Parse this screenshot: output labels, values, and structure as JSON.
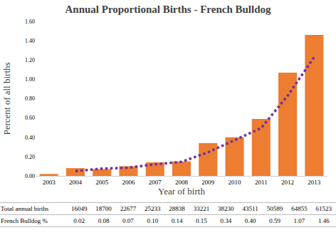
{
  "chart_data": {
    "type": "bar",
    "title": "Annual Proportional Births - French Bulldog",
    "x_label": "Year of birth",
    "y_label": "Percent of all births",
    "categories": [
      "2003",
      "2004",
      "2005",
      "2006",
      "2007",
      "2008",
      "2009",
      "2010",
      "2011",
      "2012",
      "2013"
    ],
    "series": [
      {
        "type": "bar",
        "color": "#ed7d31",
        "values": [
          0.02,
          0.08,
          0.07,
          0.1,
          0.14,
          0.15,
          0.34,
          0.4,
          0.59,
          1.07,
          1.46
        ]
      },
      {
        "type": "line",
        "color": "#7030a0",
        "line_style": "dotted",
        "values": [
          null,
          0.05,
          0.075,
          0.085,
          0.12,
          0.145,
          0.245,
          0.37,
          0.495,
          0.83,
          1.23
        ]
      }
    ],
    "ylim": [
      0,
      1.6
    ],
    "yticks": [
      {
        "value": 0,
        "label": "0.00"
      },
      {
        "value": 0.2,
        "label": "0.20"
      },
      {
        "value": 0.4,
        "label": "0.40"
      },
      {
        "value": 0.6,
        "label": "0.60"
      },
      {
        "value": 0.8,
        "label": "0.80"
      },
      {
        "value": 1.0,
        "label": "1.00"
      },
      {
        "value": 1.2,
        "label": "1.20"
      },
      {
        "value": 1.4,
        "label": "1.40"
      },
      {
        "value": 1.6,
        "label": "1.60"
      }
    ],
    "grid": false,
    "table": {
      "rows": [
        [
          "Total annual births",
          16049,
          18700,
          22677,
          25233,
          28838,
          33221,
          38230,
          43511,
          50589,
          64855,
          61523
        ],
        [
          "French Bulldog %",
          "0.02",
          "0.08",
          "0.07",
          "0.10",
          "0.14",
          "0.15",
          "0.34",
          "0.40",
          "0.59",
          "1.07",
          "1.46"
        ]
      ]
    }
  }
}
